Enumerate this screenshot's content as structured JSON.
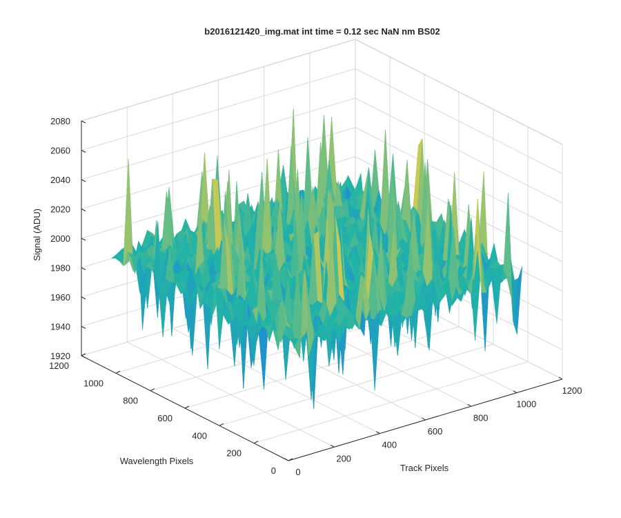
{
  "chart_data": {
    "type": "surface",
    "title": "b2016121420_img.mat int time = 0.12 sec  NaN nm BS02",
    "xlabel": "Track Pixels",
    "ylabel": "Wavelength Pixels",
    "zlabel": "Signal (ADU)",
    "xlim": [
      0,
      1200
    ],
    "ylim": [
      0,
      1200
    ],
    "zlim": [
      1920,
      2080
    ],
    "xticks": [
      "0",
      "200",
      "400",
      "600",
      "800",
      "1000",
      "1200"
    ],
    "yticks": [
      "0",
      "200",
      "400",
      "600",
      "800",
      "1000",
      "1200"
    ],
    "zticks": [
      "1920",
      "1940",
      "1960",
      "1980",
      "2000",
      "2020",
      "2040",
      "2060",
      "2080"
    ],
    "grid": true,
    "colormap": "parula",
    "surface": {
      "x_range": [
        0,
        1024
      ],
      "y_range": [
        0,
        1024
      ],
      "mean_signal": 2000,
      "min_signal": 1940,
      "max_signal": 2070
    }
  },
  "colors": {
    "axis": "#262626",
    "grid": "#d9d9d9",
    "low": "#1f8fd0",
    "mid": "#21b3a6",
    "high": "#c9c957"
  }
}
